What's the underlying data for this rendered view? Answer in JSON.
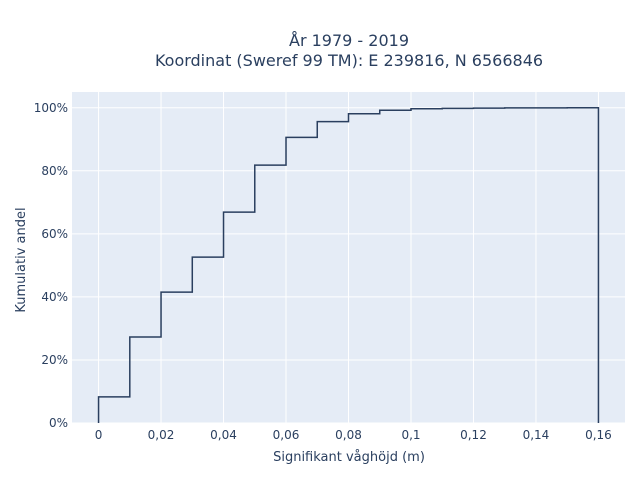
{
  "chart_data": {
    "type": "line",
    "title_line1": "År 1979 - 2019",
    "title_line2": "Koordinat (Sweref 99 TM): E 239816, N 6566846",
    "xlabel": "Signifikant våghöjd (m)",
    "ylabel": "Kumulativ andel",
    "xlim": [
      -0.0085,
      0.1685
    ],
    "ylim": [
      0,
      1.05
    ],
    "x_ticks": [
      {
        "value": 0,
        "label": "0"
      },
      {
        "value": 0.02,
        "label": "0,02"
      },
      {
        "value": 0.04,
        "label": "0,04"
      },
      {
        "value": 0.06,
        "label": "0,06"
      },
      {
        "value": 0.08,
        "label": "0,08"
      },
      {
        "value": 0.1,
        "label": "0,1"
      },
      {
        "value": 0.12,
        "label": "0,12"
      },
      {
        "value": 0.14,
        "label": "0,14"
      },
      {
        "value": 0.16,
        "label": "0,16"
      }
    ],
    "y_ticks": [
      {
        "value": 0,
        "label": "0%"
      },
      {
        "value": 0.2,
        "label": "20%"
      },
      {
        "value": 0.4,
        "label": "40%"
      },
      {
        "value": 0.6,
        "label": "60%"
      },
      {
        "value": 0.8,
        "label": "80%"
      },
      {
        "value": 1.0,
        "label": "100%"
      }
    ],
    "grid": true,
    "series": [
      {
        "line_style": "step",
        "bin_edges": [
          0,
          0.01,
          0.02,
          0.03,
          0.04,
          0.05,
          0.06,
          0.07,
          0.08,
          0.09,
          0.1,
          0.11,
          0.12,
          0.13,
          0.14,
          0.15,
          0.16
        ],
        "cumulative_values": [
          0.083,
          0.273,
          0.415,
          0.526,
          0.669,
          0.818,
          0.906,
          0.956,
          0.981,
          0.992,
          0.997,
          0.998,
          0.999,
          0.9995,
          0.9997,
          1.0
        ],
        "color": "#2a3f5f"
      }
    ]
  }
}
